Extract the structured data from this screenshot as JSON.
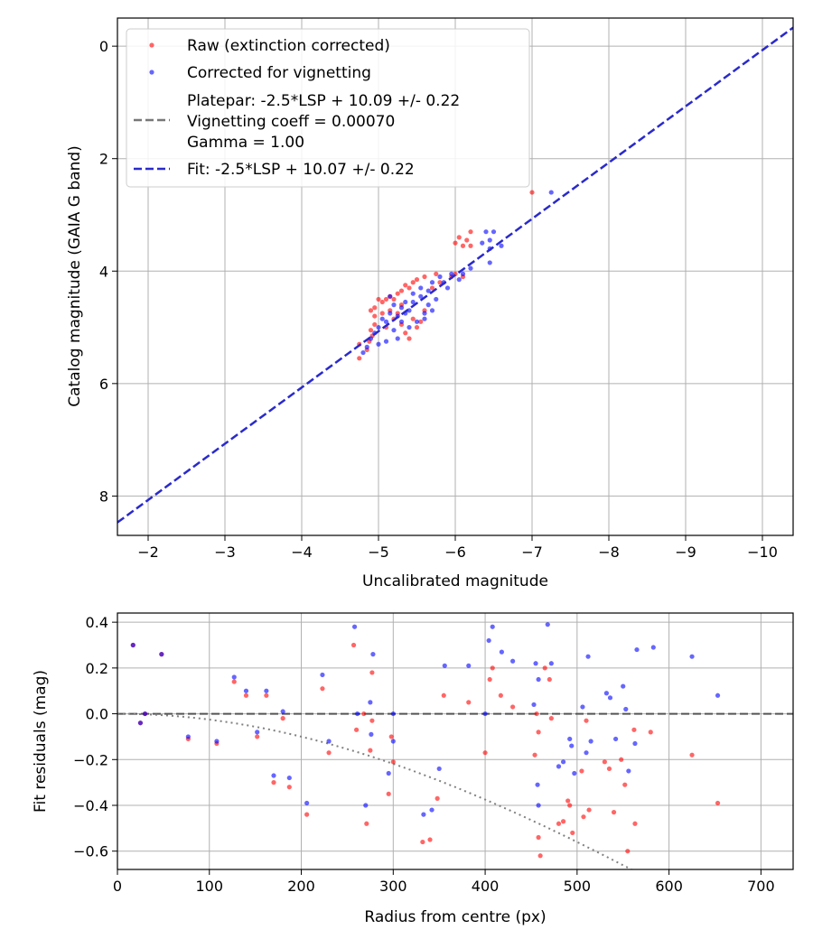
{
  "colors": {
    "raw": "#ff0000",
    "corrected": "#0000ff",
    "fit_line": "#2a2acc",
    "platepar_line": "#777777",
    "vignetting_curve": "#808080",
    "grid": "#b0b0b0",
    "zero_line": "#555555"
  },
  "chart_data": [
    {
      "id": "calibration",
      "type": "scatter",
      "xlabel": "Uncalibrated magnitude",
      "ylabel": "Catalog magnitude (GAIA G band)",
      "xlim": [
        -1.6,
        -10.4
      ],
      "ylim": [
        8.7,
        -0.5
      ],
      "x_inverted": true,
      "y_inverted": true,
      "xticks": [
        -2,
        -3,
        -4,
        -5,
        -6,
        -7,
        -8,
        -9,
        -10
      ],
      "xtick_labels": [
        "−2",
        "−3",
        "−4",
        "−5",
        "−6",
        "−7",
        "−8",
        "−9",
        "−10"
      ],
      "yticks": [
        0,
        2,
        4,
        6,
        8
      ],
      "ytick_labels": [
        "0",
        "2",
        "4",
        "6",
        "8"
      ],
      "grid": true,
      "legend": {
        "position": "top-left",
        "entries": [
          {
            "label": "Raw (extinction corrected)",
            "marker": "dot",
            "color": "raw"
          },
          {
            "label": "Corrected for vignetting",
            "marker": "dot",
            "color": "corrected"
          },
          {
            "label_lines": [
              "Platepar: -2.5*LSP + 10.09 +/- 0.22",
              "Vignetting coeff = 0.00070",
              "Gamma = 1.00"
            ],
            "marker": "dash",
            "color": "platepar_line"
          },
          {
            "label": "Fit: -2.5*LSP + 10.07 +/- 0.22",
            "marker": "dash",
            "color": "fit_line"
          }
        ]
      },
      "fit_line": {
        "slope": 1.0,
        "intercept": 10.07
      },
      "series": [
        {
          "name": "Raw (extinction corrected)",
          "color": "raw",
          "points": [
            [
              -7.0,
              2.6
            ],
            [
              -6.2,
              3.3
            ],
            [
              -6.15,
              3.45
            ],
            [
              -6.1,
              3.55
            ],
            [
              -6.0,
              3.5
            ],
            [
              -6.2,
              3.55
            ],
            [
              -6.05,
              3.4
            ],
            [
              -6.0,
              4.05
            ],
            [
              -6.1,
              4.1
            ],
            [
              -5.95,
              4.1
            ],
            [
              -5.8,
              4.2
            ],
            [
              -5.75,
              4.05
            ],
            [
              -5.7,
              4.3
            ],
            [
              -5.6,
              4.1
            ],
            [
              -5.5,
              4.15
            ],
            [
              -5.45,
              4.2
            ],
            [
              -5.4,
              4.3
            ],
            [
              -5.35,
              4.25
            ],
            [
              -5.3,
              4.35
            ],
            [
              -5.25,
              4.4
            ],
            [
              -5.2,
              4.5
            ],
            [
              -5.15,
              4.45
            ],
            [
              -5.1,
              4.5
            ],
            [
              -5.05,
              4.55
            ],
            [
              -5.0,
              4.5
            ],
            [
              -4.95,
              4.65
            ],
            [
              -4.95,
              4.8
            ],
            [
              -4.9,
              4.7
            ],
            [
              -4.95,
              4.95
            ],
            [
              -4.9,
              5.05
            ],
            [
              -4.92,
              5.15
            ],
            [
              -4.88,
              5.25
            ],
            [
              -4.85,
              5.4
            ],
            [
              -4.75,
              5.3
            ],
            [
              -4.75,
              5.55
            ],
            [
              -5.15,
              4.7
            ],
            [
              -5.2,
              4.85
            ],
            [
              -5.25,
              4.75
            ],
            [
              -5.3,
              4.95
            ],
            [
              -5.35,
              5.1
            ],
            [
              -5.4,
              5.2
            ],
            [
              -5.5,
              5.0
            ],
            [
              -5.45,
              4.85
            ],
            [
              -5.55,
              4.9
            ],
            [
              -5.6,
              4.7
            ],
            [
              -5.3,
              4.6
            ],
            [
              -5.05,
              4.75
            ],
            [
              -5.1,
              5.0
            ]
          ]
        },
        {
          "name": "Corrected for vignetting",
          "color": "corrected",
          "points": [
            [
              -7.25,
              2.6
            ],
            [
              -6.5,
              3.3
            ],
            [
              -6.45,
              3.45
            ],
            [
              -6.35,
              3.5
            ],
            [
              -6.4,
              3.3
            ],
            [
              -6.45,
              3.6
            ],
            [
              -6.6,
              3.55
            ],
            [
              -6.45,
              3.85
            ],
            [
              -6.2,
              3.95
            ],
            [
              -6.1,
              4.05
            ],
            [
              -6.05,
              4.15
            ],
            [
              -5.95,
              4.05
            ],
            [
              -5.85,
              4.2
            ],
            [
              -5.8,
              4.1
            ],
            [
              -5.7,
              4.2
            ],
            [
              -5.65,
              4.35
            ],
            [
              -5.55,
              4.45
            ],
            [
              -5.45,
              4.55
            ],
            [
              -5.4,
              4.7
            ],
            [
              -5.35,
              4.75
            ],
            [
              -5.3,
              4.65
            ],
            [
              -5.25,
              4.8
            ],
            [
              -5.2,
              4.6
            ],
            [
              -5.15,
              4.75
            ],
            [
              -5.1,
              4.9
            ],
            [
              -5.05,
              4.85
            ],
            [
              -5.0,
              5.0
            ],
            [
              -4.95,
              5.1
            ],
            [
              -4.9,
              5.2
            ],
            [
              -4.85,
              5.35
            ],
            [
              -4.8,
              5.45
            ],
            [
              -5.1,
              5.25
            ],
            [
              -5.0,
              5.3
            ],
            [
              -5.4,
              5.0
            ],
            [
              -5.5,
              4.9
            ],
            [
              -5.6,
              4.75
            ],
            [
              -5.65,
              4.6
            ],
            [
              -5.75,
              4.5
            ],
            [
              -5.9,
              4.3
            ],
            [
              -5.3,
              4.9
            ],
            [
              -5.2,
              5.05
            ],
            [
              -5.25,
              5.2
            ],
            [
              -5.45,
              4.4
            ],
            [
              -5.55,
              4.3
            ],
            [
              -5.6,
              4.85
            ],
            [
              -5.7,
              4.7
            ],
            [
              -5.15,
              4.45
            ],
            [
              -5.35,
              4.55
            ]
          ]
        }
      ]
    },
    {
      "id": "residuals",
      "type": "scatter",
      "xlabel": "Radius from centre (px)",
      "ylabel": "Fit residuals (mag)",
      "xlim": [
        0,
        735
      ],
      "ylim": [
        -0.68,
        0.44
      ],
      "xticks": [
        0,
        100,
        200,
        300,
        400,
        500,
        600,
        700
      ],
      "xtick_labels": [
        "0",
        "100",
        "200",
        "300",
        "400",
        "500",
        "600",
        "700"
      ],
      "yticks": [
        0.4,
        0.2,
        0.0,
        -0.2,
        -0.4,
        -0.6
      ],
      "ytick_labels": [
        "0.4",
        "0.2",
        "0.0",
        "−0.2",
        "−0.4",
        "−0.6"
      ],
      "grid": true,
      "zero_line": 0.0,
      "vignetting_curve": {
        "coeff": 0.0007,
        "description": "dotted model curve"
      },
      "series": [
        {
          "name": "Raw (extinction corrected)",
          "color": "raw",
          "points": [
            [
              17,
              0.3
            ],
            [
              25,
              -0.04
            ],
            [
              30,
              0.0
            ],
            [
              48,
              0.26
            ],
            [
              77,
              -0.11
            ],
            [
              108,
              -0.13
            ],
            [
              127,
              0.14
            ],
            [
              140,
              0.08
            ],
            [
              152,
              -0.1
            ],
            [
              162,
              0.08
            ],
            [
              170,
              -0.3
            ],
            [
              180,
              -0.02
            ],
            [
              187,
              -0.32
            ],
            [
              206,
              -0.44
            ],
            [
              223,
              0.11
            ],
            [
              230,
              -0.17
            ],
            [
              257,
              0.3
            ],
            [
              260,
              -0.07
            ],
            [
              268,
              0.0
            ],
            [
              271,
              -0.48
            ],
            [
              275,
              -0.16
            ],
            [
              277,
              0.18
            ],
            [
              277,
              -0.03
            ],
            [
              295,
              -0.35
            ],
            [
              298,
              -0.1
            ],
            [
              300,
              -0.21
            ],
            [
              332,
              -0.56
            ],
            [
              340,
              -0.55
            ],
            [
              348,
              -0.37
            ],
            [
              355,
              0.08
            ],
            [
              382,
              0.05
            ],
            [
              400,
              -0.17
            ],
            [
              405,
              0.15
            ],
            [
              408,
              0.2
            ],
            [
              417,
              0.08
            ],
            [
              430,
              0.03
            ],
            [
              454,
              -0.18
            ],
            [
              456,
              0.0
            ],
            [
              458,
              -0.08
            ],
            [
              458,
              -0.54
            ],
            [
              460,
              -0.62
            ],
            [
              465,
              0.2
            ],
            [
              470,
              0.15
            ],
            [
              472,
              -0.02
            ],
            [
              480,
              -0.48
            ],
            [
              485,
              -0.47
            ],
            [
              490,
              -0.38
            ],
            [
              492,
              -0.4
            ],
            [
              495,
              -0.52
            ],
            [
              505,
              -0.25
            ],
            [
              507,
              -0.45
            ],
            [
              510,
              -0.03
            ],
            [
              513,
              -0.42
            ],
            [
              530,
              -0.21
            ],
            [
              535,
              -0.24
            ],
            [
              540,
              -0.43
            ],
            [
              548,
              -0.2
            ],
            [
              552,
              -0.31
            ],
            [
              555,
              -0.6
            ],
            [
              562,
              -0.07
            ],
            [
              563,
              -0.48
            ],
            [
              580,
              -0.08
            ],
            [
              625,
              -0.18
            ],
            [
              653,
              -0.39
            ]
          ]
        },
        {
          "name": "Corrected for vignetting",
          "color": "corrected",
          "points": [
            [
              17,
              0.3
            ],
            [
              25,
              -0.04
            ],
            [
              30,
              0.0
            ],
            [
              48,
              0.26
            ],
            [
              77,
              -0.1
            ],
            [
              108,
              -0.12
            ],
            [
              127,
              0.16
            ],
            [
              140,
              0.1
            ],
            [
              152,
              -0.08
            ],
            [
              162,
              0.1
            ],
            [
              170,
              -0.27
            ],
            [
              180,
              0.01
            ],
            [
              187,
              -0.28
            ],
            [
              206,
              -0.39
            ],
            [
              223,
              0.17
            ],
            [
              230,
              -0.12
            ],
            [
              258,
              0.38
            ],
            [
              261,
              0.0
            ],
            [
              270,
              -0.4
            ],
            [
              275,
              0.05
            ],
            [
              276,
              -0.09
            ],
            [
              278,
              0.26
            ],
            [
              295,
              -0.26
            ],
            [
              300,
              0.0
            ],
            [
              300,
              -0.12
            ],
            [
              333,
              -0.44
            ],
            [
              342,
              -0.42
            ],
            [
              350,
              -0.24
            ],
            [
              356,
              0.21
            ],
            [
              382,
              0.21
            ],
            [
              400,
              0.0
            ],
            [
              404,
              0.32
            ],
            [
              408,
              0.38
            ],
            [
              418,
              0.27
            ],
            [
              430,
              0.23
            ],
            [
              453,
              0.04
            ],
            [
              455,
              0.22
            ],
            [
              457,
              -0.31
            ],
            [
              458,
              -0.4
            ],
            [
              458,
              0.15
            ],
            [
              468,
              0.39
            ],
            [
              472,
              0.22
            ],
            [
              480,
              -0.23
            ],
            [
              485,
              -0.21
            ],
            [
              492,
              -0.11
            ],
            [
              494,
              -0.14
            ],
            [
              497,
              -0.26
            ],
            [
              506,
              0.03
            ],
            [
              512,
              0.25
            ],
            [
              515,
              -0.12
            ],
            [
              510,
              -0.17
            ],
            [
              532,
              0.09
            ],
            [
              536,
              0.07
            ],
            [
              542,
              -0.11
            ],
            [
              550,
              0.12
            ],
            [
              553,
              0.02
            ],
            [
              556,
              -0.25
            ],
            [
              563,
              -0.13
            ],
            [
              565,
              0.28
            ],
            [
              583,
              0.29
            ],
            [
              625,
              0.25
            ],
            [
              653,
              0.08
            ]
          ]
        }
      ]
    }
  ]
}
